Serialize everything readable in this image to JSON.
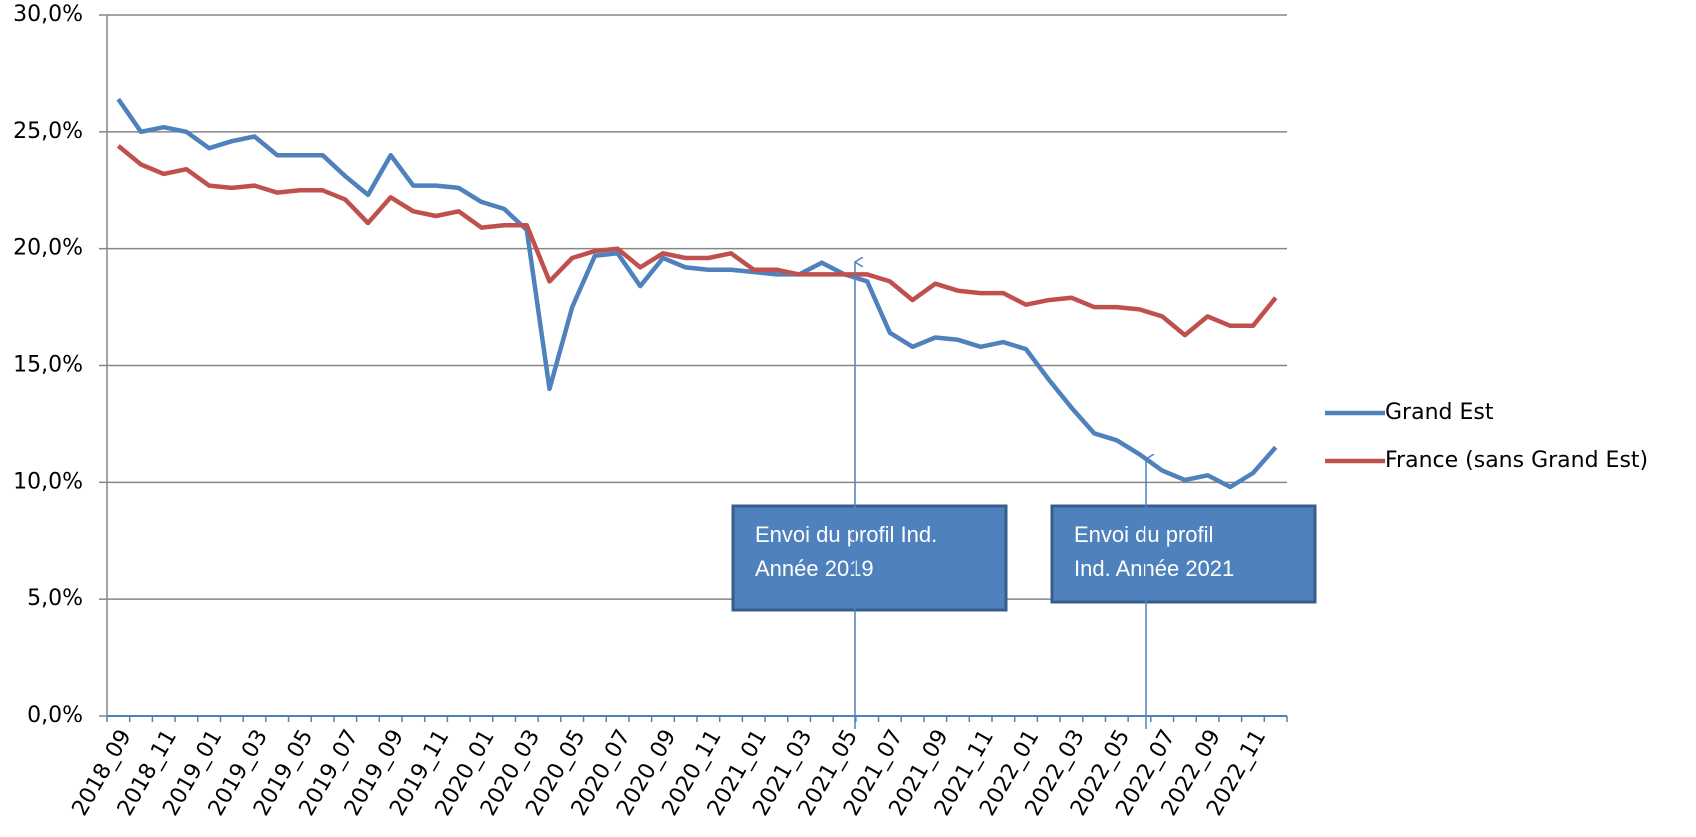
{
  "chart_data": {
    "type": "line",
    "categories": [
      "2018_09",
      null,
      "2018_11",
      null,
      "2019_01",
      null,
      "2019_03",
      null,
      "2019_05",
      null,
      "2019_07",
      null,
      "2019_09",
      null,
      "2019_11",
      null,
      "2020_01",
      null,
      "2020_03",
      null,
      "2020_05",
      null,
      "2020_07",
      null,
      "2020_09",
      null,
      "2020_11",
      null,
      "2021_01",
      null,
      "2021_03",
      null,
      "2021_05",
      null,
      "2021_07",
      null,
      "2021_09",
      null,
      "2021_11",
      null,
      "2022_01",
      null,
      "2022_03",
      null,
      "2022_05",
      null,
      "2022_07",
      null,
      "2022_09",
      null,
      "2022_11",
      null
    ],
    "series": [
      {
        "name": "Grand Est",
        "color": "#4f81bd",
        "values": [
          26.4,
          25.0,
          25.2,
          25.0,
          24.3,
          24.6,
          24.8,
          24.0,
          24.0,
          24.0,
          23.1,
          22.3,
          24.0,
          22.7,
          22.7,
          22.6,
          22.0,
          21.7,
          20.8,
          14.0,
          17.5,
          19.7,
          19.8,
          18.4,
          19.6,
          19.2,
          19.1,
          19.1,
          19.0,
          18.9,
          18.9,
          19.4,
          18.9,
          18.6,
          16.4,
          15.8,
          16.2,
          16.1,
          15.8,
          16.0,
          15.7,
          14.4,
          13.2,
          12.1,
          11.8,
          11.2,
          10.5,
          10.1,
          10.3,
          9.8,
          10.4,
          11.5
        ]
      },
      {
        "name": "France (sans Grand Est)",
        "color": "#c0504d",
        "values": [
          24.4,
          23.6,
          23.2,
          23.4,
          22.7,
          22.6,
          22.7,
          22.4,
          22.5,
          22.5,
          22.1,
          21.1,
          22.2,
          21.6,
          21.4,
          21.6,
          20.9,
          21.0,
          21.0,
          18.6,
          19.6,
          19.9,
          20.0,
          19.2,
          19.8,
          19.6,
          19.6,
          19.8,
          19.1,
          19.1,
          18.9,
          18.9,
          18.9,
          18.9,
          18.6,
          17.8,
          18.5,
          18.2,
          18.1,
          18.1,
          17.6,
          17.8,
          17.9,
          17.5,
          17.5,
          17.4,
          17.1,
          16.3,
          17.1,
          16.7,
          16.7,
          17.9
        ]
      }
    ],
    "ylim": [
      0,
      30
    ],
    "yticks": [
      {
        "value": 0,
        "label": "0,0%"
      },
      {
        "value": 5,
        "label": "5,0%"
      },
      {
        "value": 10,
        "label": "10,0%"
      },
      {
        "value": 15,
        "label": "15,0%"
      },
      {
        "value": 20,
        "label": "20,0%"
      },
      {
        "value": 25,
        "label": "25,0%"
      },
      {
        "value": 30,
        "label": "30,0%"
      }
    ],
    "grid": true,
    "legend": "right",
    "annotations": [
      {
        "lines": [
          "Envoi du profil Ind.",
          "Année 2019"
        ]
      },
      {
        "lines": [
          "Envoi du profil",
          "Ind. Année 2021"
        ]
      }
    ]
  }
}
